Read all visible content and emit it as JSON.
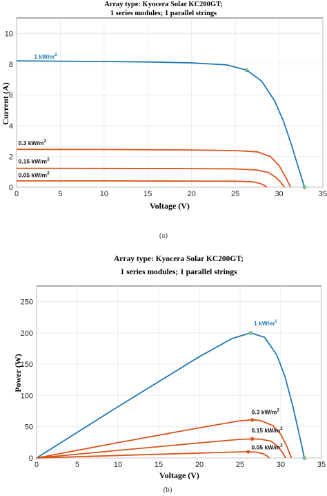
{
  "chart_data": [
    {
      "type": "line",
      "title_lines": [
        "Array type: Kyocera Solar KC200GT;",
        "1 series modules; 1 parallel strings"
      ],
      "xlabel": "Voltage (V)",
      "ylabel": "Current (A)",
      "xlim": [
        0,
        35
      ],
      "ylim": [
        0,
        11
      ],
      "xticks": [
        0,
        5,
        10,
        15,
        20,
        25,
        30,
        35
      ],
      "yticks": [
        0,
        2,
        4,
        6,
        8,
        10
      ],
      "grid": true,
      "caption": "(a)",
      "series": [
        {
          "label_base": "1 kW/m",
          "label_sup": "2",
          "color": "#1f77b4",
          "x": [
            0,
            5,
            10,
            15,
            20,
            24,
            26.3,
            28,
            29.5,
            30.5,
            31.5,
            32.3,
            32.9
          ],
          "y": [
            8.21,
            8.19,
            8.17,
            8.14,
            8.08,
            7.95,
            7.61,
            6.9,
            5.6,
            4.3,
            2.6,
            1.1,
            0
          ],
          "mpp": [
            26.3,
            7.61
          ],
          "voc": [
            32.9,
            0
          ]
        },
        {
          "label_base": "0.3 kW/m",
          "label_sup": "2",
          "color": "#d95319",
          "x": [
            0,
            10,
            20,
            25,
            27.5,
            29,
            30,
            30.8,
            31.3
          ],
          "y": [
            2.46,
            2.45,
            2.42,
            2.38,
            2.3,
            2.0,
            1.4,
            0.6,
            0
          ]
        },
        {
          "label_base": "0.15 kW/m",
          "label_sup": "2",
          "color": "#d95319",
          "x": [
            0,
            10,
            20,
            25,
            27.5,
            28.8,
            29.6,
            30.2,
            30.6
          ],
          "y": [
            1.23,
            1.22,
            1.21,
            1.19,
            1.12,
            0.95,
            0.65,
            0.3,
            0
          ]
        },
        {
          "label_base": "0.05 kW/m",
          "label_sup": "2",
          "color": "#d95319",
          "x": [
            0,
            10,
            20,
            25,
            27,
            27.8,
            28.3,
            28.6
          ],
          "y": [
            0.41,
            0.41,
            0.4,
            0.39,
            0.35,
            0.25,
            0.12,
            0
          ]
        }
      ]
    },
    {
      "type": "line",
      "title_lines": [
        "Array type: Kyocera Solar KC200GT;",
        "1 series modules; 1 parallel strings"
      ],
      "xlabel": "Voltage (V)",
      "ylabel": "Power (W)",
      "xlim": [
        0,
        35
      ],
      "ylim": [
        0,
        275
      ],
      "xticks": [
        0,
        5,
        10,
        15,
        20,
        25,
        30,
        35
      ],
      "yticks": [
        0,
        50,
        100,
        150,
        200,
        250
      ],
      "grid": true,
      "caption": "(b)",
      "series": [
        {
          "label_base": "1 kW/m",
          "label_sup": "2",
          "color": "#1f77b4",
          "x": [
            0,
            5,
            10,
            15,
            20,
            24,
            26.3,
            28,
            29.5,
            30.5,
            31.5,
            32.3,
            32.9
          ],
          "y": [
            0,
            41,
            82,
            122,
            162,
            191,
            200,
            193,
            165,
            131,
            82,
            36,
            0
          ],
          "mpp": [
            26.3,
            200
          ],
          "voc": [
            32.9,
            0
          ]
        },
        {
          "label_base": "0.3 kW/m",
          "label_sup": "2",
          "color": "#d95319",
          "x": [
            0,
            10,
            20,
            25,
            26.5,
            27.5,
            29,
            30,
            30.8,
            31.3
          ],
          "y": [
            0,
            24.5,
            48.4,
            59.5,
            61,
            60,
            52,
            38,
            17,
            0
          ],
          "mpp": [
            26.5,
            61
          ]
        },
        {
          "label_base": "0.15 kW/m",
          "label_sup": "2",
          "color": "#d95319",
          "x": [
            0,
            10,
            20,
            25,
            26.5,
            27.5,
            28.8,
            29.6,
            30.2,
            30.6
          ],
          "y": [
            0,
            12.2,
            24.2,
            29.8,
            30.5,
            30.2,
            27,
            19,
            9,
            0
          ],
          "mpp": [
            26.5,
            30.5
          ]
        },
        {
          "label_base": "0.05 kW/m",
          "label_sup": "2",
          "color": "#d95319",
          "x": [
            0,
            10,
            20,
            25,
            26,
            27,
            27.8,
            28.3,
            28.6
          ],
          "y": [
            0,
            4.1,
            8,
            9.8,
            9.9,
            9.4,
            7,
            3.4,
            0
          ],
          "mpp": [
            26,
            9.9
          ]
        }
      ]
    }
  ]
}
